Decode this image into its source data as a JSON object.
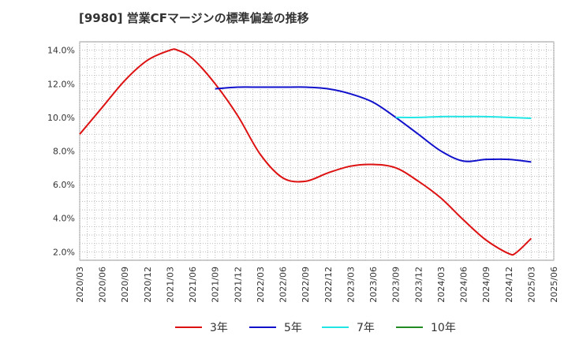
{
  "chart_data": {
    "type": "line",
    "title": "[9980]  営業CFマージンの標準偏差の推移",
    "xlabel": "",
    "ylabel": "",
    "x_ticks": [
      "2020/03",
      "2020/06",
      "2020/09",
      "2020/12",
      "2021/03",
      "2021/06",
      "2021/09",
      "2021/12",
      "2022/03",
      "2022/06",
      "2022/09",
      "2022/12",
      "2023/03",
      "2023/06",
      "2023/09",
      "2023/12",
      "2024/03",
      "2024/06",
      "2024/09",
      "2024/12",
      "2025/03",
      "2025/06"
    ],
    "y_ticks": [
      "2.0%",
      "4.0%",
      "6.0%",
      "8.0%",
      "10.0%",
      "12.0%",
      "14.0%"
    ],
    "ylim": [
      1.5,
      14.5
    ],
    "grid": true,
    "legend_position": "bottom",
    "series": [
      {
        "name": "3年",
        "color": "#dd1111",
        "points": [
          [
            "2020/03",
            9.0
          ],
          [
            "2020/06",
            10.6
          ],
          [
            "2020/09",
            12.2
          ],
          [
            "2020/12",
            13.4
          ],
          [
            "2021/03",
            14.0
          ],
          [
            "2021/04",
            14.0
          ],
          [
            "2021/06",
            13.5
          ],
          [
            "2021/09",
            12.0
          ],
          [
            "2021/12",
            10.1
          ],
          [
            "2022/03",
            7.8
          ],
          [
            "2022/06",
            6.4
          ],
          [
            "2022/09",
            6.2
          ],
          [
            "2022/12",
            6.7
          ],
          [
            "2023/03",
            7.1
          ],
          [
            "2023/06",
            7.2
          ],
          [
            "2023/09",
            7.0
          ],
          [
            "2023/12",
            6.2
          ],
          [
            "2024/03",
            5.2
          ],
          [
            "2024/06",
            3.9
          ],
          [
            "2024/09",
            2.7
          ],
          [
            "2024/12",
            1.9
          ],
          [
            "2025/01",
            1.95
          ],
          [
            "2025/03",
            2.8
          ]
        ]
      },
      {
        "name": "5年",
        "color": "#1111cc",
        "points": [
          [
            "2021/09",
            11.7
          ],
          [
            "2021/12",
            11.8
          ],
          [
            "2022/03",
            11.8
          ],
          [
            "2022/06",
            11.8
          ],
          [
            "2022/09",
            11.8
          ],
          [
            "2022/12",
            11.7
          ],
          [
            "2023/03",
            11.4
          ],
          [
            "2023/06",
            10.9
          ],
          [
            "2023/09",
            10.0
          ],
          [
            "2023/12",
            9.0
          ],
          [
            "2024/03",
            8.0
          ],
          [
            "2024/06",
            7.4
          ],
          [
            "2024/09",
            7.5
          ],
          [
            "2024/12",
            7.5
          ],
          [
            "2025/03",
            7.35
          ]
        ]
      },
      {
        "name": "7年",
        "color": "#22e6e6",
        "points": [
          [
            "2023/09",
            10.0
          ],
          [
            "2023/12",
            10.0
          ],
          [
            "2024/03",
            10.05
          ],
          [
            "2024/06",
            10.05
          ],
          [
            "2024/09",
            10.05
          ],
          [
            "2024/12",
            10.0
          ],
          [
            "2025/03",
            9.95
          ]
        ]
      },
      {
        "name": "10年",
        "color": "#228b22",
        "points": []
      }
    ]
  }
}
